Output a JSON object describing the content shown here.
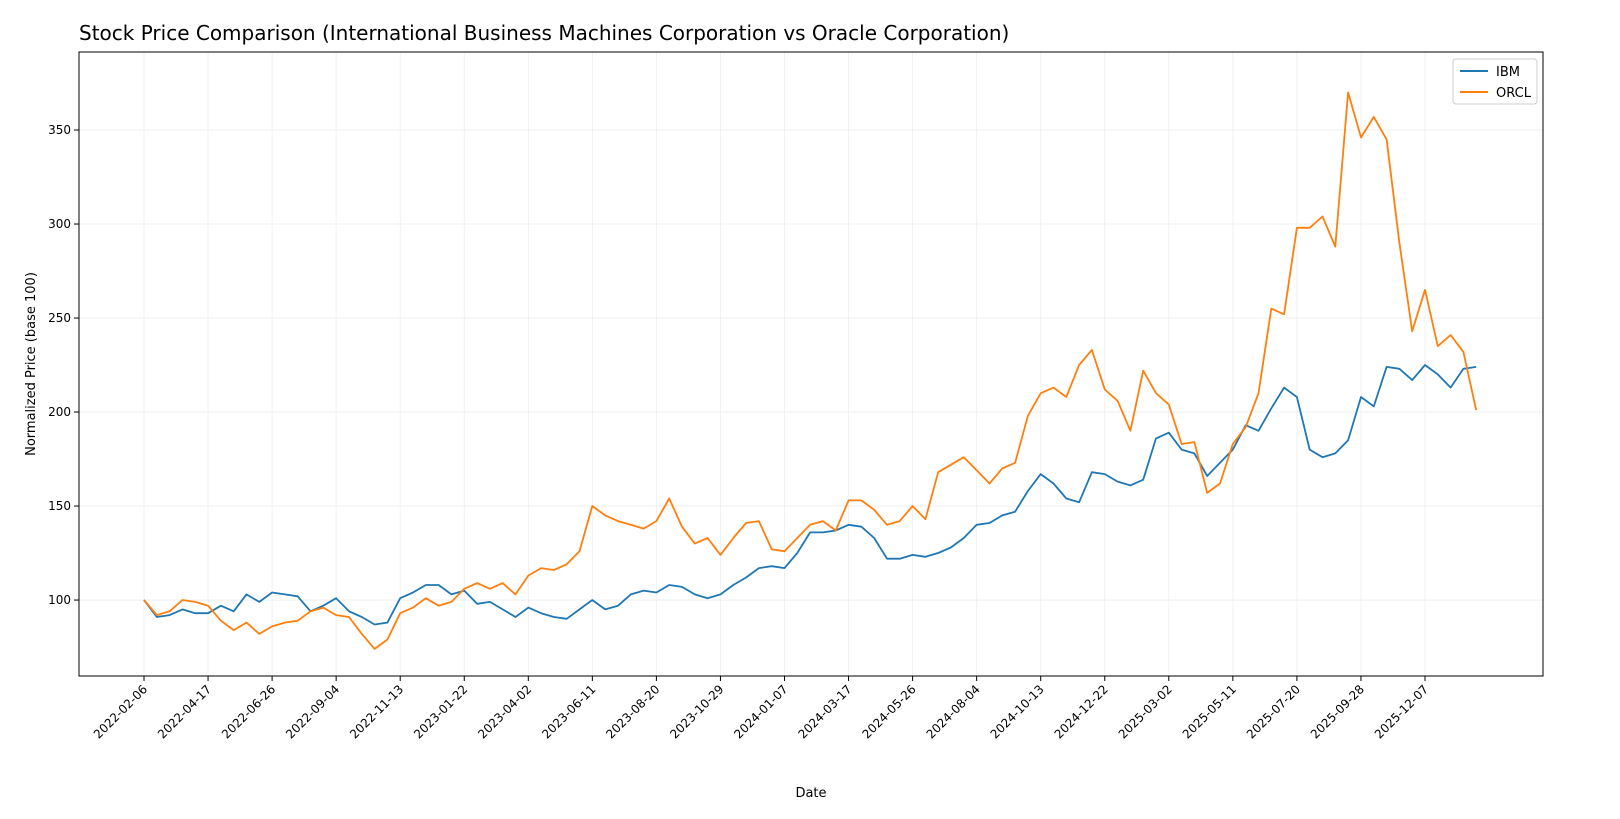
{
  "chart_data": {
    "type": "line",
    "title": "Stock Price Comparison (International Business Machines Corporation vs Oracle Corporation)",
    "xlabel": "Date",
    "ylabel": "Normalized Price (base 100)",
    "ylim": [
      59.6,
      391.5
    ],
    "yticks": [
      100,
      150,
      200,
      250,
      300,
      350
    ],
    "xticks": [
      "2022-02-06",
      "2022-04-17",
      "2022-06-26",
      "2022-09-04",
      "2022-11-13",
      "2023-01-22",
      "2023-04-02",
      "2023-06-11",
      "2023-08-20",
      "2023-10-29",
      "2024-01-07",
      "2024-03-17",
      "2024-05-26",
      "2024-08-04",
      "2024-10-13",
      "2024-12-22",
      "2025-03-02",
      "2025-05-11",
      "2025-07-20",
      "2025-09-28",
      "2025-12-07"
    ],
    "grid": true,
    "legend_position": "top-right",
    "x": [
      "2022-02-06",
      "2022-02-20",
      "2022-03-06",
      "2022-03-20",
      "2022-04-03",
      "2022-04-17",
      "2022-05-01",
      "2022-05-15",
      "2022-05-29",
      "2022-06-12",
      "2022-06-26",
      "2022-07-10",
      "2022-07-24",
      "2022-08-07",
      "2022-08-21",
      "2022-09-04",
      "2022-09-18",
      "2022-10-02",
      "2022-10-16",
      "2022-10-30",
      "2022-11-13",
      "2022-11-27",
      "2022-12-11",
      "2022-12-25",
      "2023-01-08",
      "2023-01-22",
      "2023-02-05",
      "2023-02-19",
      "2023-03-05",
      "2023-03-19",
      "2023-04-02",
      "2023-04-16",
      "2023-04-30",
      "2023-05-14",
      "2023-05-28",
      "2023-06-11",
      "2023-06-25",
      "2023-07-09",
      "2023-07-23",
      "2023-08-06",
      "2023-08-20",
      "2023-09-03",
      "2023-09-17",
      "2023-10-01",
      "2023-10-15",
      "2023-10-29",
      "2023-11-12",
      "2023-11-26",
      "2023-12-10",
      "2023-12-24",
      "2024-01-07",
      "2024-01-21",
      "2024-02-04",
      "2024-02-18",
      "2024-03-03",
      "2024-03-17",
      "2024-03-31",
      "2024-04-14",
      "2024-04-28",
      "2024-05-12",
      "2024-05-26",
      "2024-06-09",
      "2024-06-23",
      "2024-07-07",
      "2024-07-21",
      "2024-08-04",
      "2024-08-18",
      "2024-09-01",
      "2024-09-15",
      "2024-09-29",
      "2024-10-13",
      "2024-10-27",
      "2024-11-10",
      "2024-11-24",
      "2024-12-08",
      "2024-12-22",
      "2025-01-05",
      "2025-01-19",
      "2025-02-02",
      "2025-02-16",
      "2025-03-02",
      "2025-03-16",
      "2025-03-30",
      "2025-04-13",
      "2025-04-27",
      "2025-05-11",
      "2025-05-25",
      "2025-06-08",
      "2025-06-22",
      "2025-07-06",
      "2025-07-20",
      "2025-08-03",
      "2025-08-17",
      "2025-08-31",
      "2025-09-14",
      "2025-09-28",
      "2025-10-12",
      "2025-10-26",
      "2025-11-09",
      "2025-11-23",
      "2025-12-07",
      "2025-12-21",
      "2026-01-04",
      "2026-01-18",
      "2026-02-01"
    ],
    "series": [
      {
        "name": "IBM",
        "color": "#1f77b4",
        "values": [
          100,
          91,
          92,
          95,
          93,
          93,
          97,
          94,
          103,
          99,
          104,
          103,
          102,
          94,
          97,
          101,
          94,
          91,
          87,
          88,
          101,
          104,
          108,
          108,
          103,
          105,
          98,
          99,
          95,
          91,
          96,
          93,
          91,
          90,
          95,
          100,
          95,
          97,
          103,
          105,
          104,
          108,
          107,
          103,
          101,
          103,
          108,
          112,
          117,
          118,
          117,
          125,
          136,
          136,
          137,
          140,
          139,
          133,
          122,
          122,
          124,
          123,
          125,
          128,
          133,
          140,
          141,
          145,
          147,
          158,
          167,
          162,
          154,
          152,
          168,
          167,
          163,
          161,
          164,
          186,
          189,
          180,
          178,
          166,
          173,
          180,
          193,
          190,
          202,
          213,
          208,
          180,
          176,
          178,
          185,
          208,
          203,
          224,
          223,
          217,
          225,
          220,
          213,
          223,
          224
        ]
      },
      {
        "name": "ORCL",
        "color": "#ff7f0e",
        "values": [
          100,
          92,
          94,
          100,
          99,
          97,
          89,
          84,
          88,
          82,
          86,
          88,
          89,
          94,
          96,
          92,
          91,
          82,
          74,
          79,
          93,
          96,
          101,
          97,
          99,
          106,
          109,
          106,
          109,
          103,
          113,
          117,
          116,
          119,
          126,
          150,
          145,
          142,
          140,
          138,
          142,
          154,
          139,
          130,
          133,
          124,
          133,
          141,
          142,
          127,
          126,
          133,
          140,
          142,
          137,
          153,
          153,
          148,
          140,
          142,
          150,
          143,
          168,
          172,
          176,
          169,
          162,
          170,
          173,
          198,
          210,
          213,
          208,
          225,
          233,
          212,
          206,
          190,
          222,
          210,
          204,
          183,
          184,
          157,
          162,
          183,
          192,
          210,
          255,
          252,
          298,
          298,
          304,
          288,
          370,
          346,
          357,
          345,
          290,
          243,
          265,
          235,
          241,
          232,
          201
        ]
      }
    ]
  }
}
